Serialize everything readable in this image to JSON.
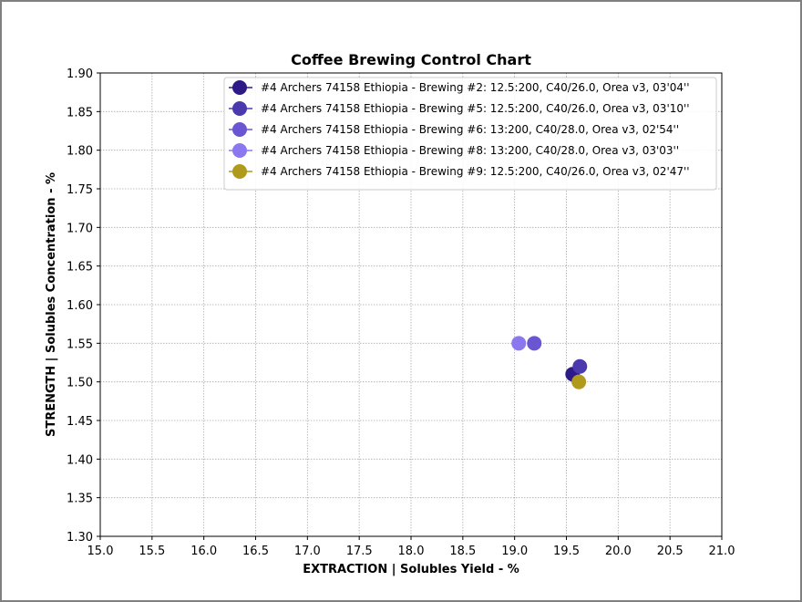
{
  "chart_data": {
    "type": "scatter",
    "title": "Coffee Brewing Control Chart",
    "xlabel": "EXTRACTION | Solubles Yield - %",
    "ylabel": "STRENGTH | Solubles Concentration - %",
    "xlim": [
      15.0,
      21.0
    ],
    "ylim": [
      1.3,
      1.9
    ],
    "xticks": [
      "15.0",
      "15.5",
      "16.0",
      "16.5",
      "17.0",
      "17.5",
      "18.0",
      "18.5",
      "19.0",
      "19.5",
      "20.0",
      "20.5",
      "21.0"
    ],
    "yticks": [
      "1.30",
      "1.35",
      "1.40",
      "1.45",
      "1.50",
      "1.55",
      "1.60",
      "1.65",
      "1.70",
      "1.75",
      "1.80",
      "1.85",
      "1.90"
    ],
    "grid": true,
    "legend_position": "top-right",
    "series": [
      {
        "name": "#4 Archers 74158 Ethiopia  - Brewing #2: 12.5:200, C40/26.0, Orea v3, 03'04''",
        "color": "#2e1a87",
        "x": [
          19.56
        ],
        "y": [
          1.51
        ]
      },
      {
        "name": "#4 Archers 74158 Ethiopia  - Brewing #5: 12.5:200, C40/26.0, Orea v3, 03'10''",
        "color": "#4b3aad",
        "x": [
          19.63
        ],
        "y": [
          1.52
        ]
      },
      {
        "name": "#4 Archers 74158 Ethiopia  - Brewing #6: 13:200, C40/28.0, Orea v3, 02'54''",
        "color": "#6a55d3",
        "x": [
          19.19
        ],
        "y": [
          1.55
        ]
      },
      {
        "name": "#4 Archers 74158 Ethiopia  - Brewing #8: 13:200, C40/28.0, Orea v3, 03'03''",
        "color": "#8c78ee",
        "x": [
          19.04
        ],
        "y": [
          1.55
        ]
      },
      {
        "name": "#4 Archers 74158 Ethiopia  - Brewing #9: 12.5:200, C40/26.0, Orea v3, 02'47''",
        "color": "#b09a1c",
        "x": [
          19.62
        ],
        "y": [
          1.5
        ]
      }
    ]
  }
}
